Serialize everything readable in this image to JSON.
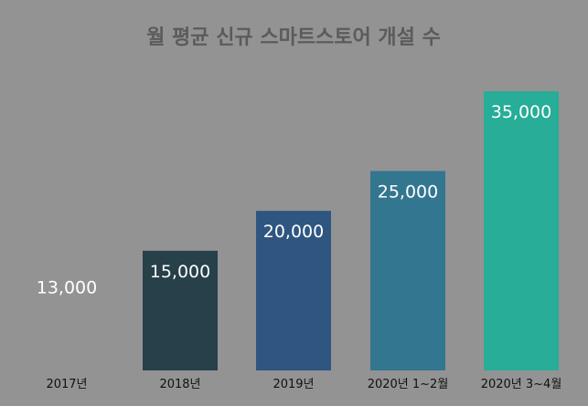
{
  "chart_data": {
    "type": "bar",
    "title": "월 평균 신규 스마트스토어 개설 수",
    "categories": [
      "2017년",
      "2018년",
      "2019년",
      "2020년 1~2월",
      "2020년 3~4월"
    ],
    "values": [
      13000,
      15000,
      20000,
      25000,
      35000
    ],
    "value_labels": [
      "13,000",
      "15,000",
      "20,000",
      "25,000",
      "35,000"
    ],
    "colors": [
      "#939393",
      "#27404a",
      "#2e5680",
      "#33768f",
      "#27ad98"
    ],
    "ylim": [
      0,
      35000
    ],
    "grid": false,
    "legend": "none"
  }
}
